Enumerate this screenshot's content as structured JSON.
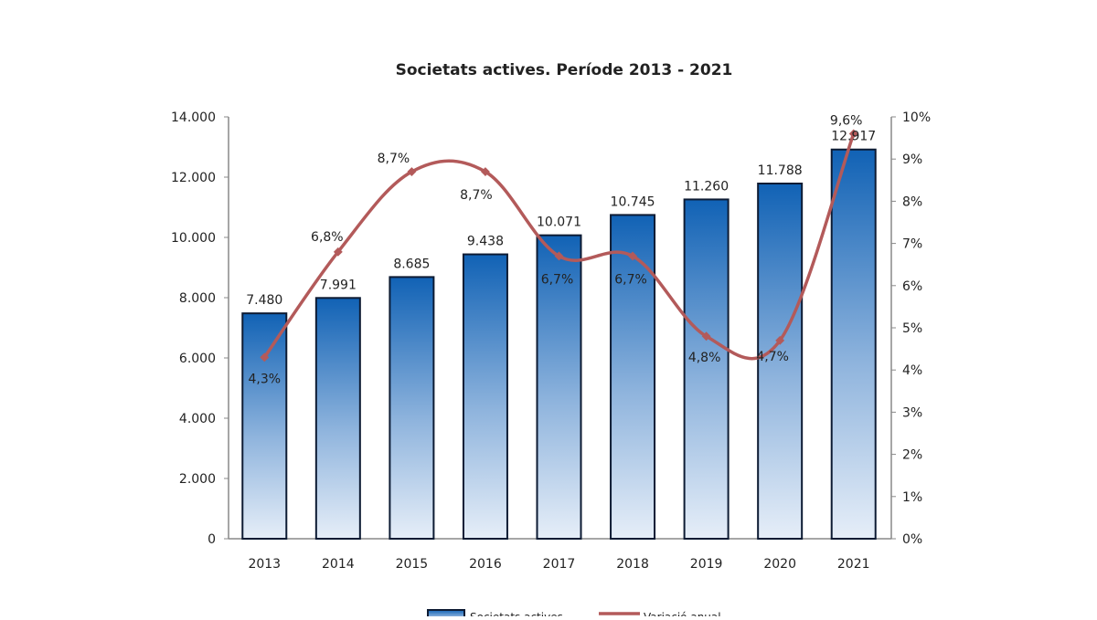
{
  "chart_data": {
    "type": "bar+line",
    "title": "Societats actives. Període 2013 - 2021",
    "categories": [
      "2013",
      "2014",
      "2015",
      "2016",
      "2017",
      "2018",
      "2019",
      "2020",
      "2021"
    ],
    "series": [
      {
        "name": "Societats actives",
        "type": "bar",
        "axis": "left",
        "values": [
          7480,
          7991,
          8685,
          9438,
          10071,
          10745,
          11260,
          11788,
          12917
        ],
        "labels": [
          "7.480",
          "7.991",
          "8.685",
          "9.438",
          "10.071",
          "10.745",
          "11.260",
          "11.788",
          "12.917"
        ],
        "color": "#1565b8"
      },
      {
        "name": "Variació anual",
        "type": "line",
        "axis": "right",
        "values": [
          4.3,
          6.8,
          8.7,
          8.7,
          6.7,
          6.7,
          4.8,
          4.7,
          9.6
        ],
        "labels": [
          "4,3%",
          "6,8%",
          "8,7%",
          "8,7%",
          "6,7%",
          "6,7%",
          "4,8%",
          "4,7%",
          "9,6%"
        ],
        "color": "#b35a5a"
      }
    ],
    "left_axis": {
      "range": [
        0,
        14000
      ],
      "ticks": [
        "0",
        "2.000",
        "4.000",
        "6.000",
        "8.000",
        "10.000",
        "12.000",
        "14.000"
      ]
    },
    "right_axis": {
      "range": [
        0,
        10
      ],
      "ticks": [
        "0%",
        "1%",
        "2%",
        "3%",
        "4%",
        "5%",
        "6%",
        "7%",
        "8%",
        "9%",
        "10%"
      ]
    },
    "grid": false,
    "legend": "bottom"
  }
}
